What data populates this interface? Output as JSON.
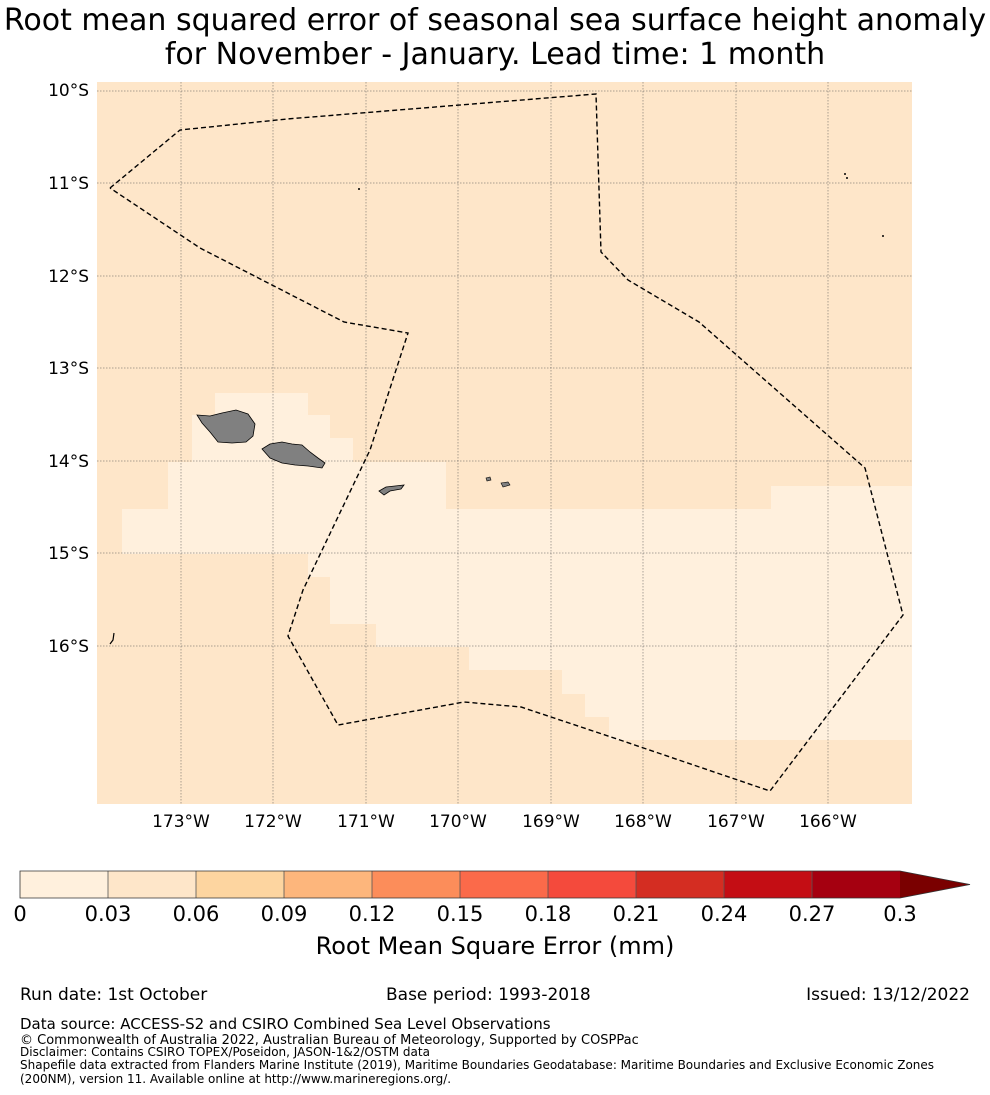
{
  "title": {
    "line1": "Root mean squared error of seasonal sea surface height anomaly",
    "line2": "for November - January. Lead time: 1 month"
  },
  "map": {
    "lat_labels": [
      "10°S",
      "11°S",
      "12°S",
      "13°S",
      "14°S",
      "15°S",
      "16°S"
    ],
    "lon_labels": [
      "173°W",
      "172°W",
      "171°W",
      "170°W",
      "169°W",
      "168°W",
      "167°W",
      "166°W"
    ],
    "lat_range": [
      -10,
      -17.8
    ],
    "lon_range": [
      -173.9,
      -165.1
    ],
    "colors": {
      "land": "#808080",
      "background_field": "#fee6c9",
      "low_field": "#fff0dd",
      "boundary": "#000000"
    },
    "boundary_style": "dashed",
    "islands": [
      "samoa-upolu",
      "samoa-savaii",
      "tutuila",
      "manua-islands",
      "swains-island",
      "rose-atoll"
    ]
  },
  "colorbar": {
    "ticks": [
      "0",
      "0.03",
      "0.06",
      "0.09",
      "0.12",
      "0.15",
      "0.18",
      "0.21",
      "0.24",
      "0.27",
      "0.3"
    ],
    "colors": [
      "#fff0dd",
      "#fee6c9",
      "#fdd5a0",
      "#fdb67c",
      "#fc8d5a",
      "#fb6a4a",
      "#f44a3c",
      "#d42d22",
      "#c40d14",
      "#a50010"
    ],
    "extend_color": "#7a0000",
    "title": "Root Mean Square Error (mm)"
  },
  "footer": {
    "run_date": "Run date: 1st October",
    "base_period": "Base period: 1993-2018",
    "issued": "Issued: 13/12/2022",
    "data_source": "Data source: ACCESS-S2 and CSIRO Combined Sea Level Observations",
    "copyright": "© Commonwealth of Australia 2022, Australian Bureau of Meteorology, Supported by COSPPac",
    "disclaimer": "Disclaimer: Contains CSIRO TOPEX/Poseidon, JASON-1&2/OSTM data",
    "shapefile": "Shapefile data extracted from Flanders Marine Institute (2019), Maritime Boundaries Geodatabase: Maritime Boundaries and Exclusive Economic Zones (200NM), version 11. Available online at http://www.marineregions.org/."
  }
}
